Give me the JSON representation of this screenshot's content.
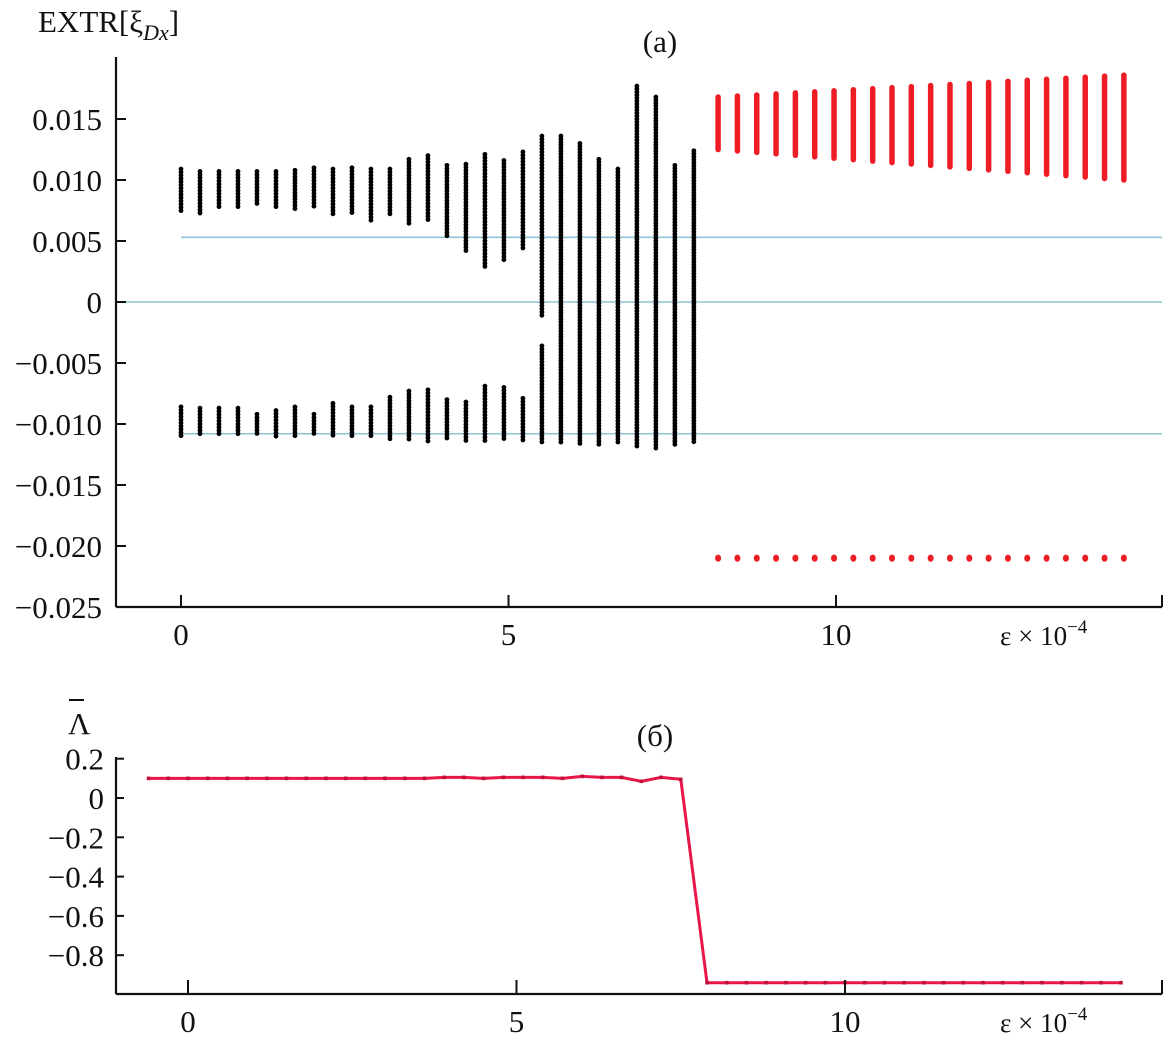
{
  "chart_data": [
    {
      "id": "a",
      "type": "scatter",
      "title": "(a)",
      "xlabel": "ε × 10",
      "xlabel_exp": "−4",
      "ylabel": "EXTR[ξ",
      "ylabel_sub": "Dx",
      "ylabel_close": "]",
      "xlim": [
        -1,
        15
      ],
      "ylim": [
        -0.025,
        0.019
      ],
      "xticks": [
        0,
        5,
        10
      ],
      "xtick_labels": [
        "0",
        "5",
        "10"
      ],
      "yticks": [
        0.015,
        0.01,
        0.005,
        0,
        -0.005,
        -0.01,
        -0.015,
        -0.02,
        -0.025
      ],
      "ytick_labels": [
        "0.015",
        "0.010",
        "0.005",
        "0",
        "−0.005",
        "−0.010",
        "−0.015",
        "−0.020",
        "−0.025"
      ],
      "reference_lines": [
        0.0053,
        0,
        -0.0108
      ],
      "colors": {
        "chaotic": "#000000",
        "periodic": "#ee1c25",
        "reference": "#8fc3d6"
      },
      "series": [
        {
          "name": "chaotic-extrema",
          "color": "#000000",
          "columns": [
            {
              "x": 0.0,
              "ranges": [
                [
                  0.0073,
                  0.0109
                ],
                [
                  -0.011,
                  -0.0086
                ]
              ]
            },
            {
              "x": 0.29,
              "ranges": [
                [
                  0.0072,
                  0.0107
                ],
                [
                  -0.011,
                  -0.0087
                ]
              ]
            },
            {
              "x": 0.58,
              "ranges": [
                [
                  0.0076,
                  0.0107
                ],
                [
                  -0.011,
                  -0.0087
                ]
              ]
            },
            {
              "x": 0.87,
              "ranges": [
                [
                  0.0078,
                  0.0107
                ],
                [
                  -0.011,
                  -0.0087
                ]
              ]
            },
            {
              "x": 1.16,
              "ranges": [
                [
                  0.008,
                  0.0107
                ],
                [
                  -0.011,
                  -0.0092
                ]
              ]
            },
            {
              "x": 1.45,
              "ranges": [
                [
                  0.0078,
                  0.0107
                ],
                [
                  -0.011,
                  -0.0089
                ]
              ]
            },
            {
              "x": 1.74,
              "ranges": [
                [
                  0.0075,
                  0.0108
                ],
                [
                  -0.011,
                  -0.0086
                ]
              ]
            },
            {
              "x": 2.03,
              "ranges": [
                [
                  0.0076,
                  0.011
                ],
                [
                  -0.011,
                  -0.0092
                ]
              ]
            },
            {
              "x": 2.32,
              "ranges": [
                [
                  0.007,
                  0.0109
                ],
                [
                  -0.011,
                  -0.0083
                ]
              ]
            },
            {
              "x": 2.61,
              "ranges": [
                [
                  0.0071,
                  0.011
                ],
                [
                  -0.011,
                  -0.0086
                ]
              ]
            },
            {
              "x": 2.9,
              "ranges": [
                [
                  0.0066,
                  0.0109
                ],
                [
                  -0.011,
                  -0.0086
                ]
              ]
            },
            {
              "x": 3.19,
              "ranges": [
                [
                  0.0071,
                  0.0109
                ],
                [
                  -0.0113,
                  -0.0078
                ]
              ]
            },
            {
              "x": 3.48,
              "ranges": [
                [
                  0.0063,
                  0.0117
                ],
                [
                  -0.0114,
                  -0.0073
                ]
              ]
            },
            {
              "x": 3.77,
              "ranges": [
                [
                  0.0067,
                  0.012
                ],
                [
                  -0.0114,
                  -0.0072
                ]
              ]
            },
            {
              "x": 4.06,
              "ranges": [
                [
                  0.0054,
                  0.0112
                ],
                [
                  -0.0114,
                  -0.008
                ]
              ]
            },
            {
              "x": 4.35,
              "ranges": [
                [
                  0.004,
                  0.0113
                ],
                [
                  -0.0114,
                  -0.0082
                ]
              ]
            },
            {
              "x": 4.64,
              "ranges": [
                [
                  0.0027,
                  0.0121
                ],
                [
                  -0.0114,
                  -0.0069
                ]
              ]
            },
            {
              "x": 4.93,
              "ranges": [
                [
                  0.0033,
                  0.0116
                ],
                [
                  -0.0114,
                  -0.007
                ]
              ]
            },
            {
              "x": 5.22,
              "ranges": [
                [
                  0.0044,
                  0.0123
                ],
                [
                  -0.0114,
                  -0.0079
                ]
              ]
            },
            {
              "x": 5.51,
              "ranges": [
                [
                  -0.0011,
                  0.0136
                ],
                [
                  -0.0115,
                  -0.0036
                ]
              ]
            },
            {
              "x": 5.8,
              "ranges": [
                [
                  -0.0116,
                  0.0136
                ]
              ]
            },
            {
              "x": 6.09,
              "ranges": [
                [
                  -0.0116,
                  0.013
                ]
              ]
            },
            {
              "x": 6.38,
              "ranges": [
                [
                  -0.0118,
                  0.0117
                ]
              ]
            },
            {
              "x": 6.67,
              "ranges": [
                [
                  -0.0116,
                  0.0109
                ]
              ]
            },
            {
              "x": 6.96,
              "ranges": [
                [
                  -0.012,
                  0.0177
                ]
              ]
            },
            {
              "x": 7.25,
              "ranges": [
                [
                  -0.012,
                  0.0168
                ]
              ]
            },
            {
              "x": 7.54,
              "ranges": [
                [
                  -0.0118,
                  0.0112
                ]
              ]
            },
            {
              "x": 7.83,
              "ranges": [
                [
                  -0.0116,
                  0.0124
                ]
              ]
            }
          ]
        },
        {
          "name": "periodic-extrema",
          "color": "#ee1c25",
          "x_start": 8.2,
          "x_step": 0.295,
          "count": 22,
          "upper_min": [
            0.0125,
            0.01
          ],
          "upper_max": [
            0.0168,
            0.0186
          ],
          "lower_value": -0.021
        }
      ]
    },
    {
      "id": "b",
      "type": "line",
      "title": "(б)",
      "xlabel": "ε × 10",
      "xlabel_exp": "−4",
      "ylabel": "Λ",
      "xlim": [
        -1,
        15
      ],
      "ylim": [
        -1.0,
        0.2
      ],
      "xticks": [
        0,
        5,
        10
      ],
      "xtick_labels": [
        "0",
        "5",
        "10"
      ],
      "yticks": [
        0.2,
        0,
        -0.2,
        -0.4,
        -0.6,
        -0.8
      ],
      "ytick_labels": [
        "0.2",
        "0",
        "−0.2",
        "−0.4",
        "−0.6",
        "−0.8"
      ],
      "series": [
        {
          "name": "mean-lyapunov",
          "color": "#e8174a",
          "x": [
            -0.6,
            -0.3,
            0.0,
            0.3,
            0.6,
            0.9,
            1.2,
            1.5,
            1.8,
            2.1,
            2.4,
            2.7,
            3.0,
            3.3,
            3.6,
            3.9,
            4.2,
            4.5,
            4.8,
            5.1,
            5.4,
            5.7,
            6.0,
            6.3,
            6.6,
            6.9,
            7.2,
            7.5,
            7.9,
            8.2,
            8.5,
            8.8,
            9.1,
            9.4,
            9.7,
            10.0,
            10.3,
            10.6,
            10.9,
            11.2,
            11.5,
            11.8,
            12.1,
            12.4,
            12.7,
            13.0,
            13.3,
            13.6,
            13.9,
            14.2
          ],
          "y": [
            0.1,
            0.1,
            0.1,
            0.1,
            0.1,
            0.1,
            0.1,
            0.1,
            0.1,
            0.1,
            0.1,
            0.1,
            0.1,
            0.1,
            0.1,
            0.105,
            0.105,
            0.1,
            0.105,
            0.105,
            0.105,
            0.1,
            0.11,
            0.105,
            0.105,
            0.085,
            0.105,
            0.095,
            -0.94,
            -0.94,
            -0.94,
            -0.94,
            -0.94,
            -0.94,
            -0.94,
            -0.94,
            -0.94,
            -0.94,
            -0.94,
            -0.94,
            -0.94,
            -0.94,
            -0.94,
            -0.94,
            -0.94,
            -0.94,
            -0.94,
            -0.94,
            -0.94,
            -0.94
          ]
        }
      ]
    }
  ]
}
